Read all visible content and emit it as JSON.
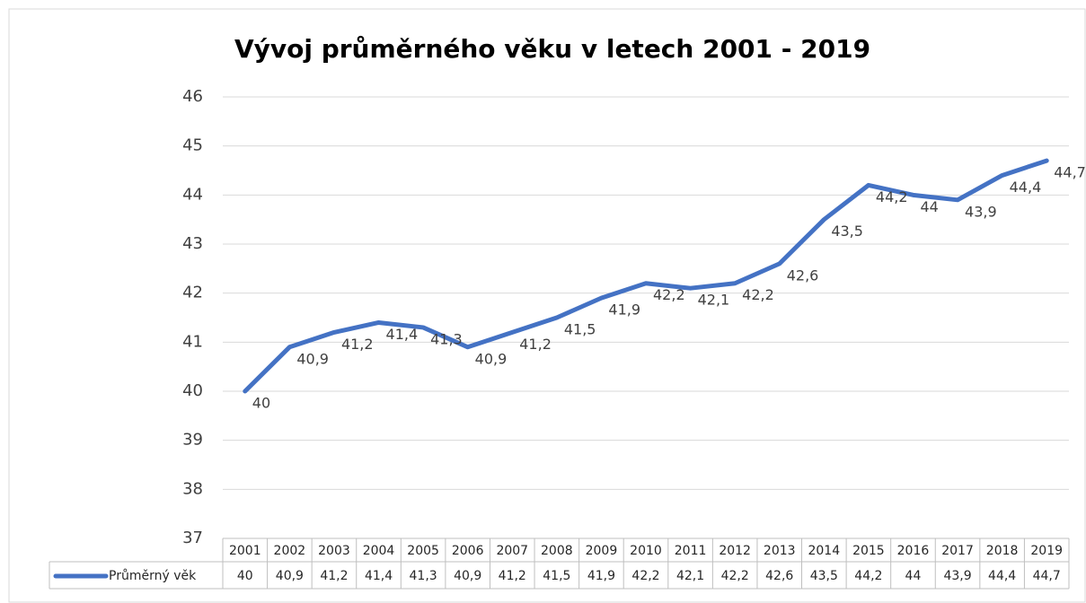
{
  "chart_data": {
    "type": "line",
    "title": "Vývoj průměrného věku v letech 2001 - 2019",
    "categories": [
      "2001",
      "2002",
      "2003",
      "2004",
      "2005",
      "2006",
      "2007",
      "2008",
      "2009",
      "2010",
      "2011",
      "2012",
      "2013",
      "2014",
      "2015",
      "2016",
      "2017",
      "2018",
      "2019"
    ],
    "series": [
      {
        "name": "Průměrný věk",
        "color": "#4472c4",
        "values": [
          40,
          40.9,
          41.2,
          41.4,
          41.3,
          40.9,
          41.2,
          41.5,
          41.9,
          42.2,
          42.1,
          42.2,
          42.6,
          43.5,
          44.2,
          44,
          43.9,
          44.4,
          44.7
        ],
        "value_labels": [
          "40",
          "40,9",
          "41,2",
          "41,4",
          "41,3",
          "40,9",
          "41,2",
          "41,5",
          "41,9",
          "42,2",
          "42,1",
          "42,2",
          "42,6",
          "43,5",
          "44,2",
          "44",
          "43,9",
          "44,4",
          "44,7"
        ]
      }
    ],
    "ylim": [
      37,
      46
    ],
    "yticks": [
      37,
      38,
      39,
      40,
      41,
      42,
      43,
      44,
      45,
      46
    ],
    "grid": true
  }
}
